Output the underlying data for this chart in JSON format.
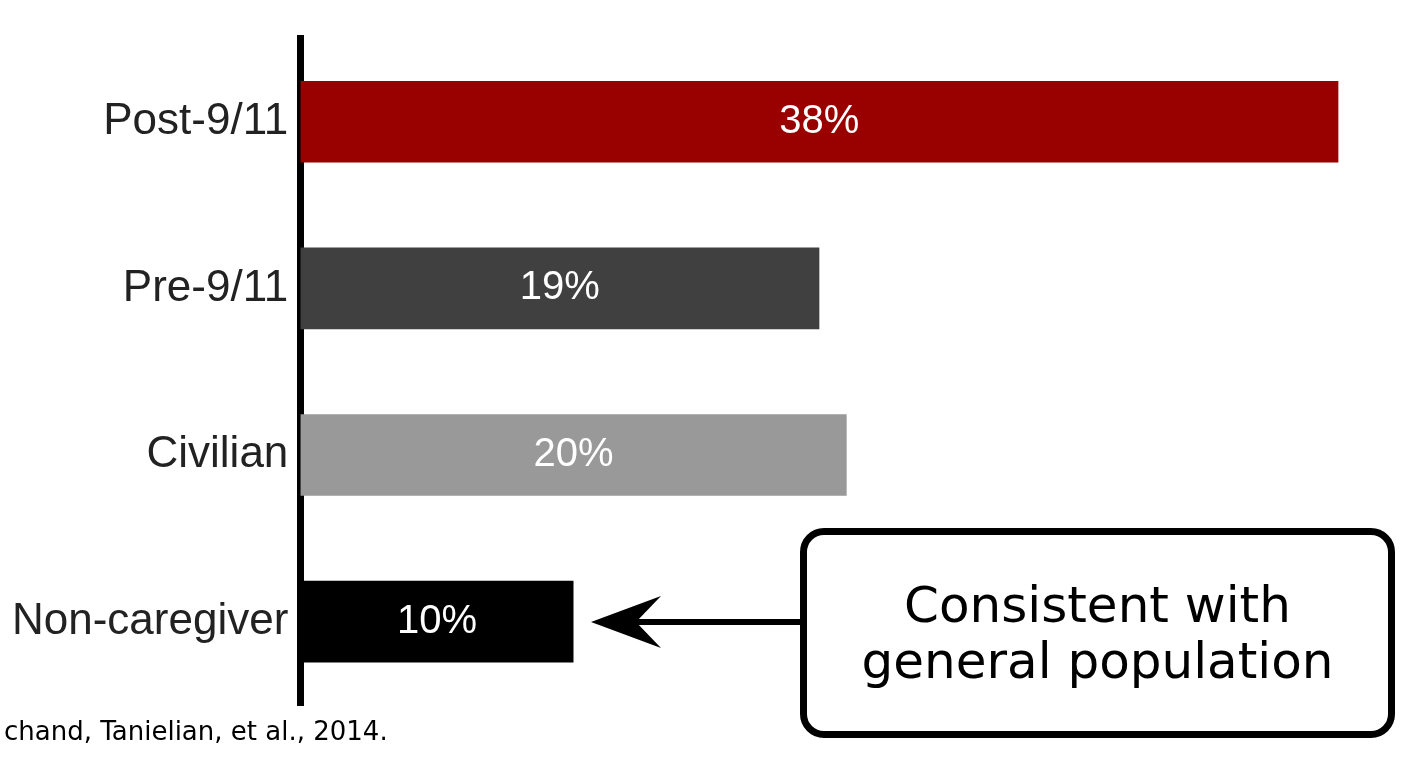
{
  "chart_data": {
    "type": "bar",
    "orientation": "horizontal",
    "categories": [
      "Post-9/11",
      "Pre-9/11",
      "Civilian",
      "Non-caregiver"
    ],
    "values": [
      38,
      19,
      20,
      10
    ],
    "value_labels": [
      "38%",
      "19%",
      "20%",
      "10%"
    ],
    "colors": [
      "#990000",
      "#404040",
      "#999999",
      "#000000"
    ],
    "tick_labels": "y",
    "legend": false,
    "annotations": [
      "Consistent with general population",
      "chand, Tanielian, et al., 2014."
    ]
  }
}
